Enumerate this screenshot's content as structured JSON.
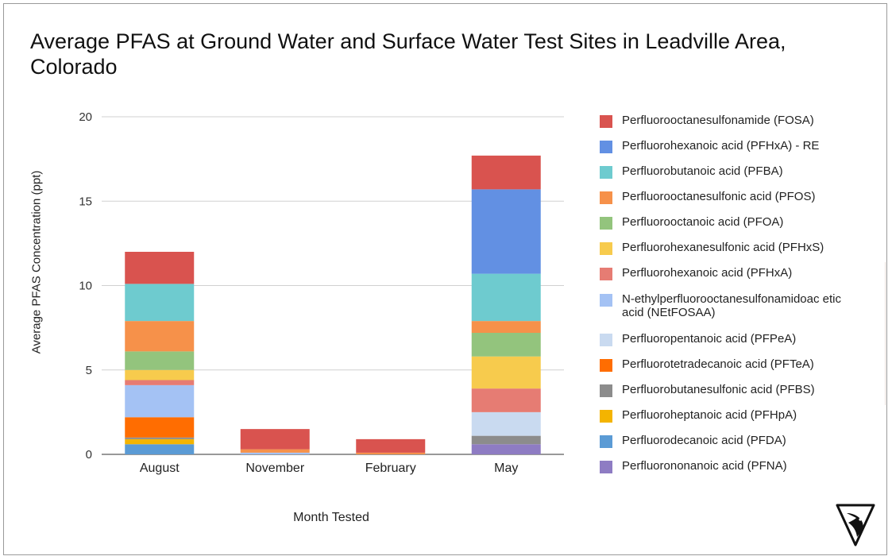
{
  "chart_data": {
    "type": "bar",
    "stacked": true,
    "title": "Average PFAS at Ground Water and Surface Water Test Sites in Leadville Area, Colorado",
    "xlabel": "Month Tested",
    "ylabel": "Average PFAS Concentration (ppt)",
    "ylim": [
      0,
      20
    ],
    "yticks": [
      0,
      5,
      10,
      15,
      20
    ],
    "grid": true,
    "legend_position": "right",
    "categories": [
      "August",
      "November",
      "February",
      "May"
    ],
    "series": [
      {
        "name": "Perfluorononanoic acid (PFNA)",
        "color": "#8e7cc3",
        "values": [
          0,
          0,
          0,
          0.6
        ]
      },
      {
        "name": "Perfluorodecanoic acid (PFDA)",
        "color": "#5b9bd5",
        "values": [
          0.6,
          0,
          0,
          0
        ]
      },
      {
        "name": "Perfluoroheptanoic acid (PFHpA)",
        "color": "#f4b400",
        "values": [
          0.3,
          0,
          0,
          0
        ]
      },
      {
        "name": "Perfluorobutanesulfonic acid (PFBS)",
        "color": "#8c8c8c",
        "values": [
          0.1,
          0,
          0,
          0.5
        ]
      },
      {
        "name": "Perfluorotetradecanoic acid (PFTeA)",
        "color": "#ff6d01",
        "values": [
          1.2,
          0,
          0,
          0
        ]
      },
      {
        "name": "Perfluoropentanoic acid (PFPeA)",
        "color": "#c9daf0",
        "values": [
          0,
          0,
          0,
          1.4
        ]
      },
      {
        "name": "N-ethylperfluorooctanesulfonamidoacetic acid (NEtFOSAA)",
        "color": "#a4c2f4",
        "values": [
          1.9,
          0.1,
          0,
          0
        ]
      },
      {
        "name": "Perfluorohexanoic acid (PFHxA)",
        "color": "#e67c73",
        "values": [
          0.3,
          0,
          0,
          1.4
        ]
      },
      {
        "name": "Perfluorohexanesulfonic acid (PFHxS)",
        "color": "#f7cb4d",
        "values": [
          0.6,
          0,
          0,
          1.9
        ]
      },
      {
        "name": "Perfluorooctanoic acid (PFOA)",
        "color": "#93c47d",
        "values": [
          1.1,
          0,
          0,
          1.4
        ]
      },
      {
        "name": "Perfluorooctanesulfonic acid (PFOS)",
        "color": "#f6914a",
        "values": [
          1.8,
          0.2,
          0.1,
          0.7
        ]
      },
      {
        "name": "Perfluorobutanoic acid (PFBA)",
        "color": "#6ecbcf",
        "values": [
          2.2,
          0,
          0,
          2.8
        ]
      },
      {
        "name": "Perfluorohexanoic acid (PFHxA) - RE",
        "color": "#6290e3",
        "values": [
          0,
          0,
          0,
          5.0
        ]
      },
      {
        "name": "Perfluorooctanesulfonamide (FOSA)",
        "color": "#d9534f",
        "values": [
          1.9,
          1.2,
          0.8,
          2.0
        ]
      }
    ],
    "legend": [
      {
        "label": "Perfluorooctanesulfonamide (FOSA)",
        "color": "#d9534f"
      },
      {
        "label": "Perfluorohexanoic acid (PFHxA) - RE",
        "color": "#6290e3"
      },
      {
        "label": "Perfluorobutanoic acid (PFBA)",
        "color": "#6ecbcf"
      },
      {
        "label": "Perfluorooctanesulfonic acid (PFOS)",
        "color": "#f6914a"
      },
      {
        "label": "Perfluorooctanoic acid (PFOA)",
        "color": "#93c47d"
      },
      {
        "label": "Perfluorohexanesulfonic acid (PFHxS)",
        "color": "#f7cb4d"
      },
      {
        "label": "Perfluorohexanoic acid (PFHxA)",
        "color": "#e67c73"
      },
      {
        "label": "N-ethylperfluorooctanesulfonamidoac etic acid (NEtFOSAA)",
        "color": "#a4c2f4"
      },
      {
        "label": "Perfluoropentanoic acid (PFPeA)",
        "color": "#c9daf0"
      },
      {
        "label": "Perfluorotetradecanoic acid (PFTeA)",
        "color": "#ff6d01"
      },
      {
        "label": "Perfluorobutanesulfonic acid (PFBS)",
        "color": "#8c8c8c"
      },
      {
        "label": "Perfluoroheptanoic acid (PFHpA)",
        "color": "#f4b400"
      },
      {
        "label": "Perfluorodecanoic acid (PFDA)",
        "color": "#5b9bd5"
      },
      {
        "label": "Perfluorononanoic acid (PFNA)",
        "color": "#8e7cc3"
      }
    ]
  },
  "logo": {
    "icon": "mountain-bird-logo-icon"
  }
}
